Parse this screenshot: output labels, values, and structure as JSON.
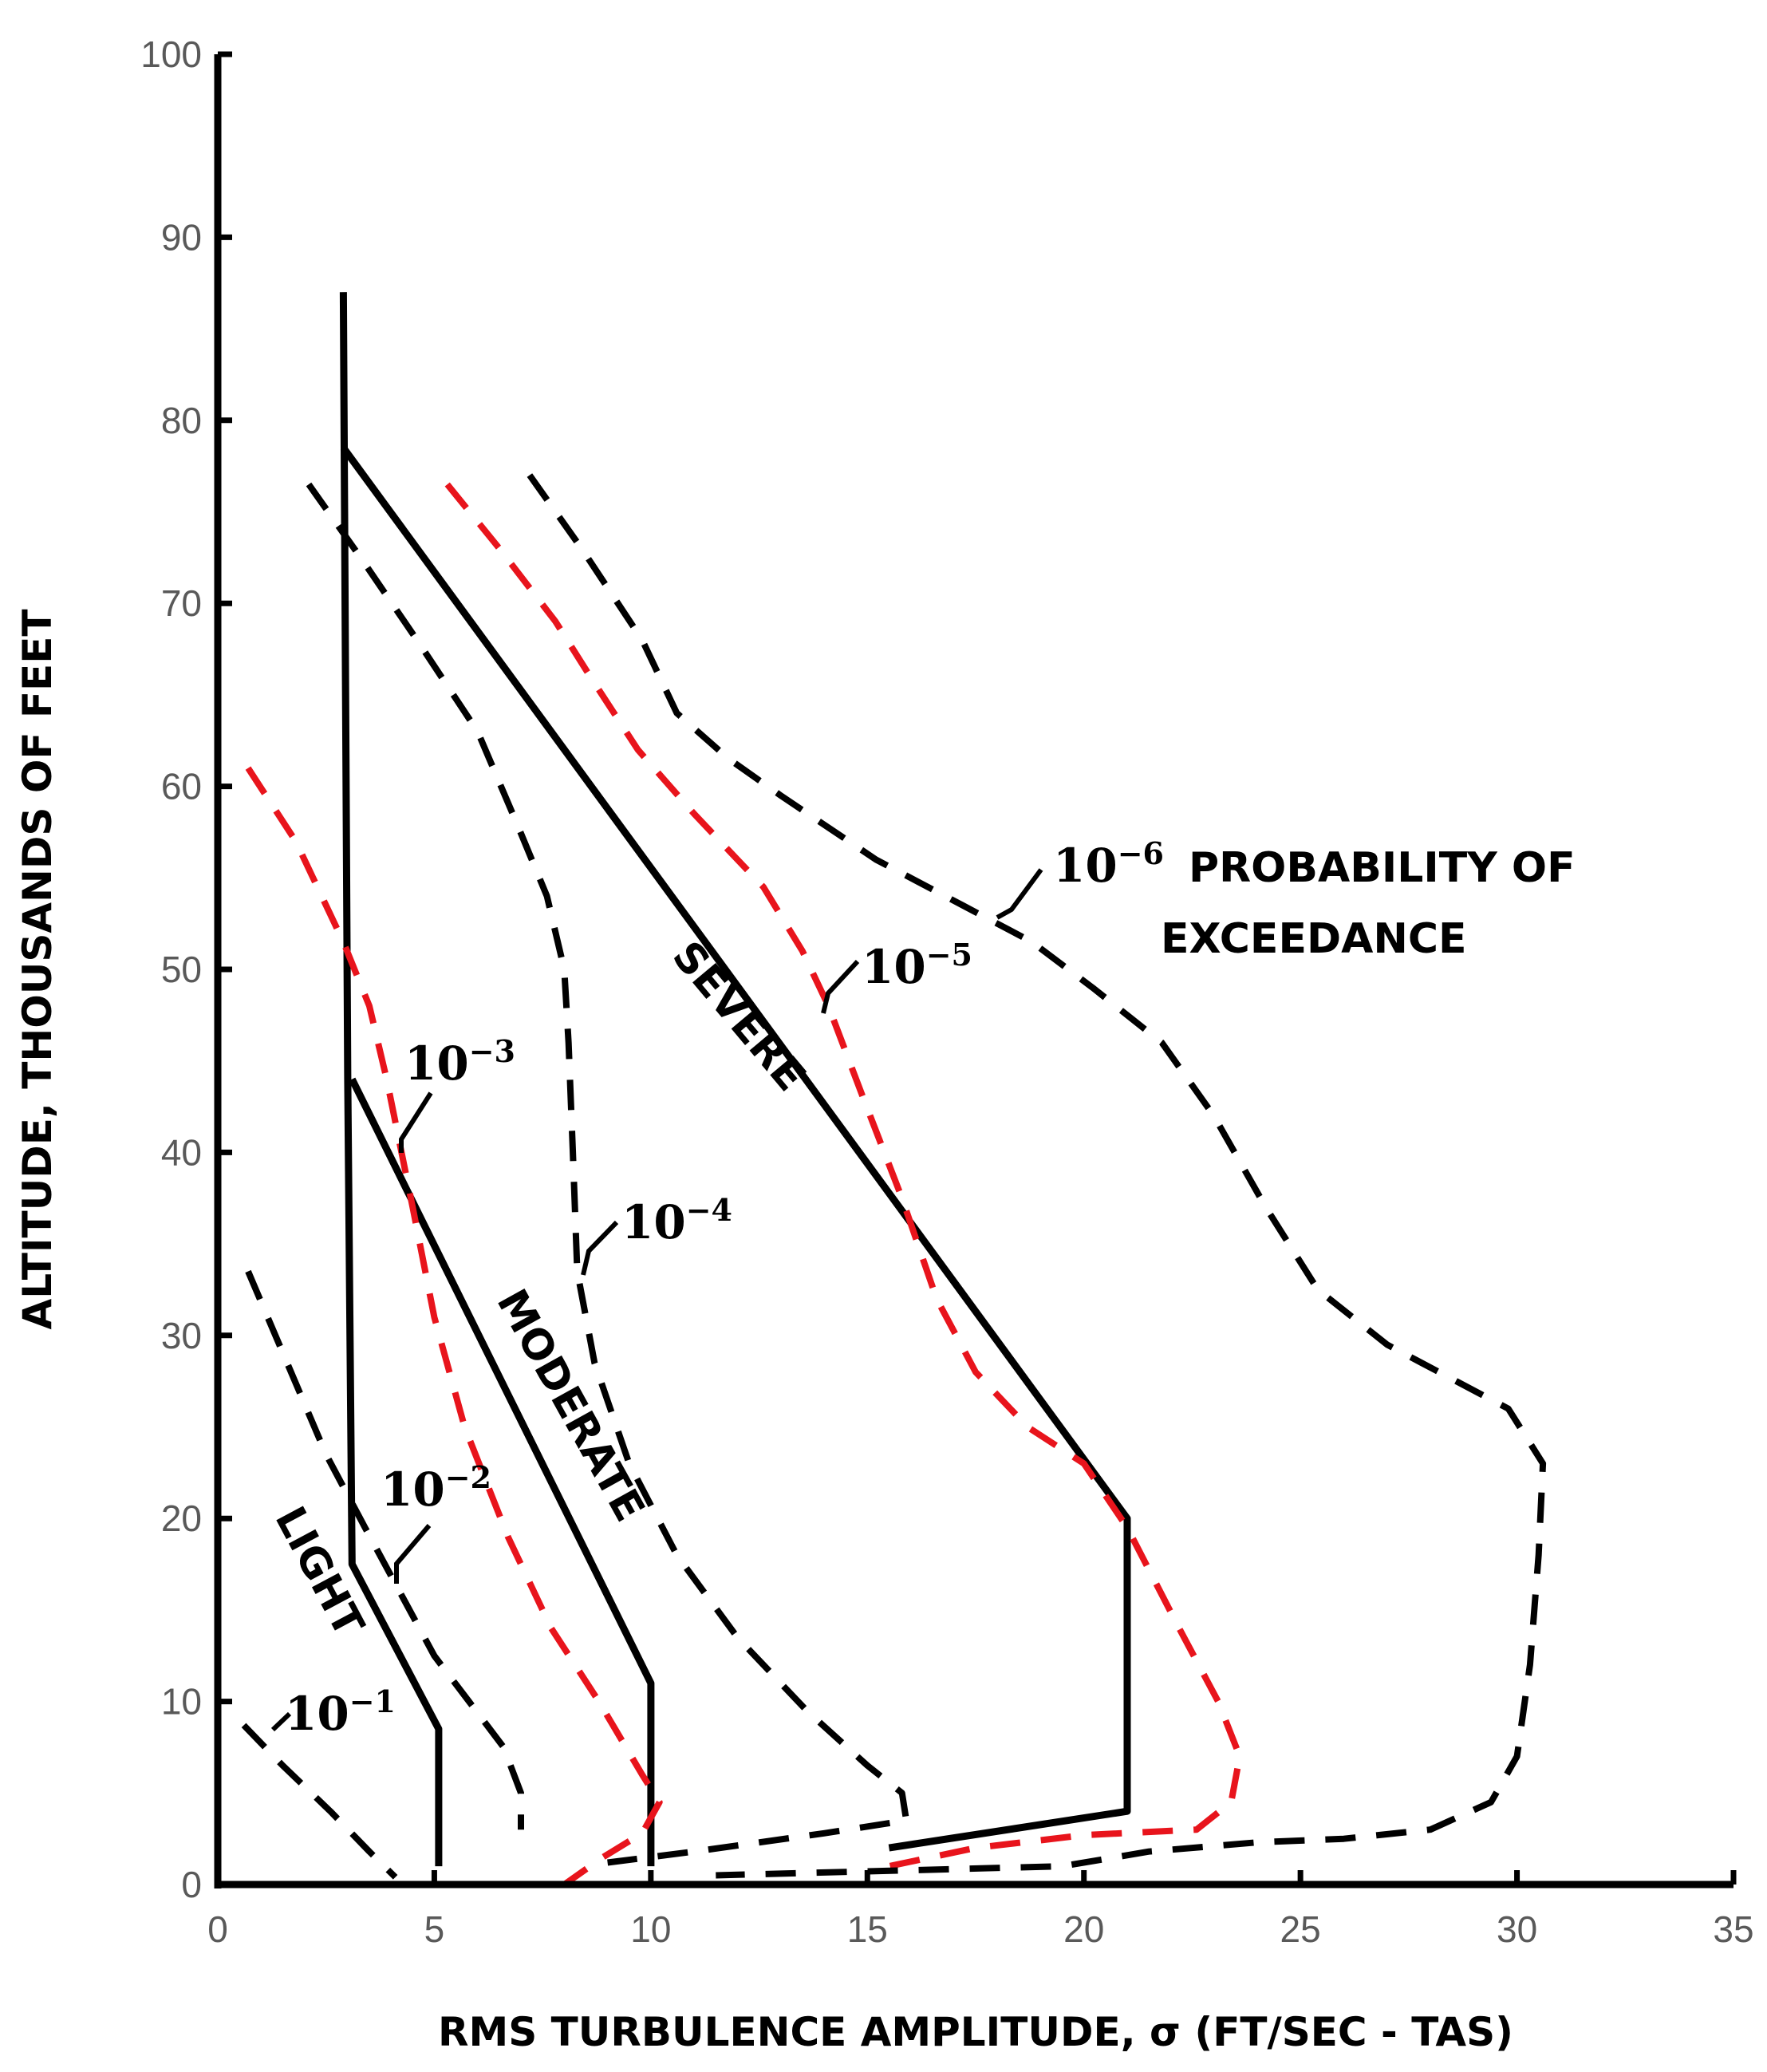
{
  "chart_data": {
    "type": "line",
    "title": "",
    "xlabel": "RMS TURBULENCE AMPLITUDE, σ (FT/SEC - TAS)",
    "ylabel": "ALTITUDE, THOUSANDS OF FEET",
    "xlim": [
      0,
      35
    ],
    "ylim": [
      0,
      100
    ],
    "x_ticks": [
      "0",
      "5",
      "10",
      "15",
      "20",
      "25",
      "30",
      "35"
    ],
    "y_ticks": [
      "0",
      "10",
      "20",
      "30",
      "40",
      "50",
      "60",
      "70",
      "80",
      "90",
      "100"
    ],
    "grid": false,
    "colors": {
      "solid": "#000000",
      "black_dashed": "#000000",
      "red_dashed": "#e8141c",
      "axis": "#000000",
      "tick_text": "#595959"
    },
    "series": [
      {
        "name": "LIGHT",
        "style": "solid",
        "color": "#000000",
        "points": [
          [
            5.1,
            1.0
          ],
          [
            5.1,
            8.5
          ],
          [
            3.1,
            17.5
          ],
          [
            3.0,
            44.0
          ],
          [
            2.9,
            87.0
          ]
        ]
      },
      {
        "name": "MODERATE",
        "style": "solid",
        "color": "#000000",
        "points": [
          [
            10.0,
            1.0
          ],
          [
            10.0,
            11.0
          ],
          [
            3.1,
            44.0
          ]
        ]
      },
      {
        "name": "SEVERE",
        "style": "solid",
        "color": "#000000",
        "points": [
          [
            15.5,
            2.0
          ],
          [
            21.0,
            4.0
          ],
          [
            21.0,
            20.0
          ],
          [
            2.9,
            78.5
          ]
        ]
      },
      {
        "name": "10⁻¹",
        "style": "dashed",
        "color": "#000000",
        "points": [
          [
            0.6,
            8.7
          ],
          [
            1.5,
            6.5
          ],
          [
            2.6,
            4.0
          ],
          [
            3.5,
            1.8
          ],
          [
            4.1,
            0.4
          ]
        ]
      },
      {
        "name": "10⁻²",
        "style": "dashed",
        "color": "#000000",
        "points": [
          [
            0.7,
            33.5
          ],
          [
            1.6,
            28.5
          ],
          [
            2.5,
            23.5
          ],
          [
            3.4,
            19.5
          ],
          [
            4.2,
            16.0
          ],
          [
            5.0,
            12.5
          ],
          [
            5.8,
            10.0
          ],
          [
            6.6,
            7.5
          ],
          [
            7.0,
            5.0
          ],
          [
            7.0,
            3.0
          ]
        ]
      },
      {
        "name": "10⁻³",
        "style": "dashed",
        "color": "#e8141c",
        "points": [
          [
            0.7,
            61.0
          ],
          [
            1.8,
            57.0
          ],
          [
            2.9,
            51.5
          ],
          [
            3.5,
            48.0
          ],
          [
            3.9,
            44.0
          ],
          [
            4.5,
            37.0
          ],
          [
            5.0,
            31.0
          ],
          [
            5.7,
            25.0
          ],
          [
            6.7,
            19.0
          ],
          [
            7.7,
            14.0
          ],
          [
            8.8,
            10.0
          ],
          [
            9.8,
            6.0
          ],
          [
            10.2,
            4.5
          ],
          [
            9.8,
            2.8
          ],
          [
            8.9,
            1.5
          ],
          [
            8.0,
            0.0
          ]
        ]
      },
      {
        "name": "10⁻⁴",
        "style": "dashed",
        "color": "#000000",
        "points": [
          [
            2.1,
            76.5
          ],
          [
            3.3,
            72.5
          ],
          [
            4.6,
            68.0
          ],
          [
            6.0,
            63.0
          ],
          [
            6.9,
            58.0
          ],
          [
            7.6,
            54.0
          ],
          [
            8.0,
            50.0
          ],
          [
            8.1,
            46.0
          ],
          [
            8.2,
            40.0
          ],
          [
            8.3,
            33.5
          ],
          [
            8.7,
            28.5
          ],
          [
            9.5,
            23.0
          ],
          [
            10.6,
            18.0
          ],
          [
            12.0,
            13.5
          ],
          [
            13.6,
            9.5
          ],
          [
            15.0,
            6.5
          ],
          [
            15.8,
            5.0
          ],
          [
            15.9,
            3.5
          ],
          [
            14.0,
            2.8
          ],
          [
            11.0,
            1.8
          ],
          [
            9.0,
            1.2
          ]
        ]
      },
      {
        "name": "10⁻⁵",
        "style": "dashed",
        "color": "#e8141c",
        "points": [
          [
            5.3,
            76.5
          ],
          [
            6.5,
            73.0
          ],
          [
            7.8,
            69.0
          ],
          [
            8.6,
            66.0
          ],
          [
            9.7,
            62.0
          ],
          [
            11.0,
            58.5
          ],
          [
            12.6,
            54.5
          ],
          [
            13.5,
            51.0
          ],
          [
            14.1,
            48.0
          ],
          [
            14.9,
            43.0
          ],
          [
            15.8,
            37.5
          ],
          [
            16.6,
            32.0
          ],
          [
            17.5,
            28.0
          ],
          [
            18.7,
            25.0
          ],
          [
            20.0,
            23.0
          ],
          [
            21.0,
            19.5
          ],
          [
            22.2,
            14.0
          ],
          [
            23.1,
            10.0
          ],
          [
            23.6,
            7.0
          ],
          [
            23.4,
            4.5
          ],
          [
            22.6,
            3.0
          ],
          [
            20.0,
            2.7
          ],
          [
            17.5,
            2.0
          ],
          [
            15.5,
            1.0
          ]
        ]
      },
      {
        "name": "10⁻⁶",
        "style": "dashed",
        "color": "#000000",
        "points": [
          [
            7.2,
            77.0
          ],
          [
            8.4,
            73.0
          ],
          [
            9.8,
            68.0
          ],
          [
            10.6,
            64.0
          ],
          [
            11.8,
            61.5
          ],
          [
            13.0,
            59.5
          ],
          [
            15.2,
            56.0
          ],
          [
            17.2,
            53.5
          ],
          [
            18.8,
            51.5
          ],
          [
            20.2,
            49.0
          ],
          [
            21.8,
            46.0
          ],
          [
            23.0,
            42.0
          ],
          [
            24.2,
            37.0
          ],
          [
            25.4,
            32.5
          ],
          [
            27.0,
            29.5
          ],
          [
            28.6,
            27.5
          ],
          [
            29.8,
            26.0
          ],
          [
            30.6,
            23.0
          ],
          [
            30.5,
            18.0
          ],
          [
            30.3,
            12.0
          ],
          [
            30.0,
            7.0
          ],
          [
            29.4,
            4.5
          ],
          [
            28.0,
            3.0
          ],
          [
            26.0,
            2.5
          ],
          [
            24.0,
            2.3
          ],
          [
            21.5,
            1.8
          ],
          [
            19.5,
            1.0
          ],
          [
            11.5,
            0.5
          ]
        ]
      }
    ],
    "annotations": [
      {
        "text": "LIGHT"
      },
      {
        "text": "MODERATE"
      },
      {
        "text": "SEVERE"
      },
      {
        "base": "10",
        "exp": "−1"
      },
      {
        "base": "10",
        "exp": "−2"
      },
      {
        "base": "10",
        "exp": "−3"
      },
      {
        "base": "10",
        "exp": "−4"
      },
      {
        "base": "10",
        "exp": "−5"
      },
      {
        "base": "10",
        "exp": "−6"
      },
      {
        "text": "PROBABILITY OF"
      },
      {
        "text": "EXCEEDANCE"
      }
    ]
  }
}
